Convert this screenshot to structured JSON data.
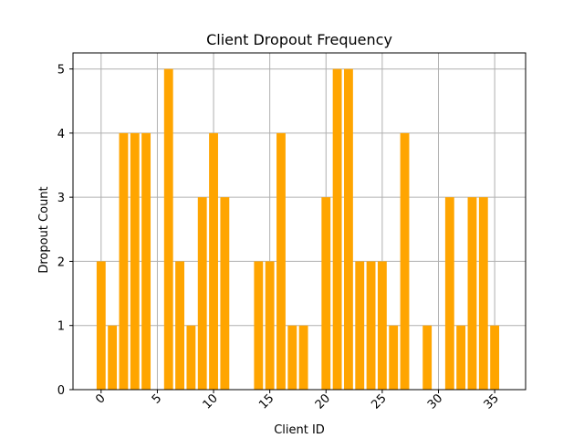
{
  "chart_data": {
    "type": "bar",
    "title": "Client Dropout Frequency",
    "xlabel": "Client ID",
    "ylabel": "Dropout Count",
    "x": [
      0,
      1,
      2,
      3,
      4,
      6,
      7,
      8,
      9,
      10,
      11,
      14,
      15,
      16,
      17,
      18,
      20,
      21,
      22,
      23,
      24,
      25,
      26,
      27,
      29,
      31,
      32,
      33,
      34,
      35
    ],
    "values": [
      2,
      1,
      4,
      4,
      4,
      5,
      2,
      1,
      3,
      4,
      3,
      2,
      2,
      4,
      1,
      1,
      3,
      5,
      5,
      2,
      2,
      2,
      1,
      4,
      1,
      3,
      1,
      3,
      3,
      1
    ],
    "xlim": [
      -2.5,
      37.75
    ],
    "ylim": [
      0,
      5.25
    ],
    "xticks": [
      0,
      5,
      10,
      15,
      20,
      25,
      30,
      35
    ],
    "yticks": [
      0,
      1,
      2,
      3,
      4,
      5
    ],
    "xtick_rotation": 45,
    "grid": true,
    "bar_color": "#ffa500"
  }
}
